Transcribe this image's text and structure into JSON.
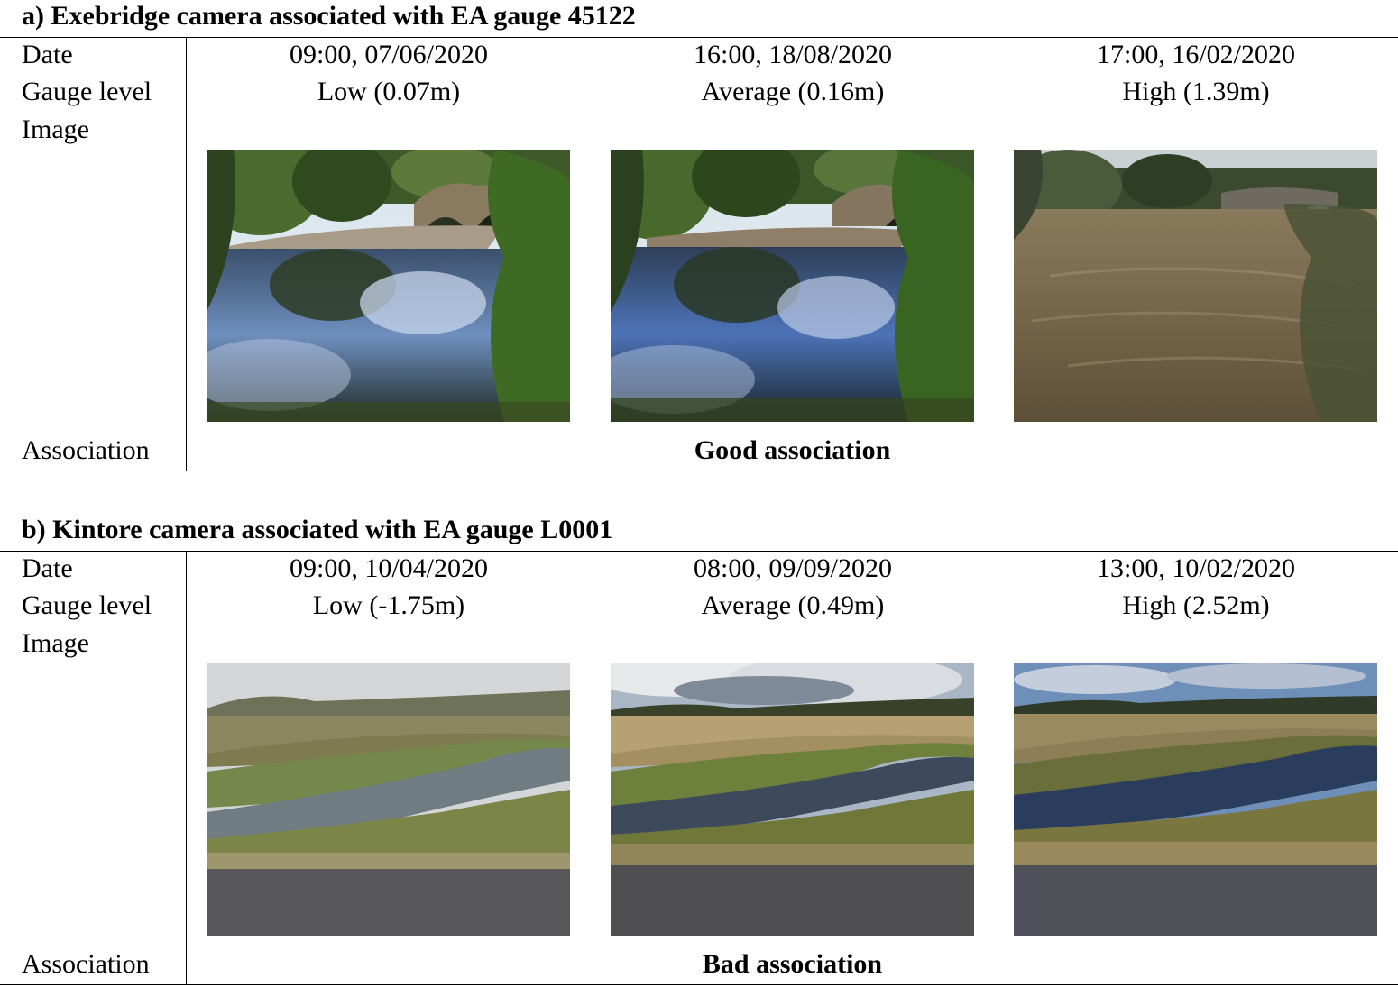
{
  "row_labels": {
    "date": "Date",
    "gauge_level": "Gauge level",
    "image": "Image",
    "association": "Association"
  },
  "section_a": {
    "title": "a) Exebridge camera associated with EA gauge 45122",
    "columns": [
      {
        "date": "09:00, 07/06/2020",
        "gauge_level": "Low (0.07m)"
      },
      {
        "date": "16:00, 18/08/2020",
        "gauge_level": "Average (0.16m)"
      },
      {
        "date": "17:00, 16/02/2020",
        "gauge_level": "High (1.39m)"
      }
    ],
    "association": "Good association"
  },
  "section_b": {
    "title": "b) Kintore camera associated with EA gauge L0001",
    "columns": [
      {
        "date": "09:00, 10/04/2020",
        "gauge_level": "Low (-1.75m)"
      },
      {
        "date": "08:00, 09/09/2020",
        "gauge_level": "Average (0.49m)"
      },
      {
        "date": "13:00, 10/02/2020",
        "gauge_level": "High (2.52m)"
      }
    ],
    "association": "Bad association"
  }
}
